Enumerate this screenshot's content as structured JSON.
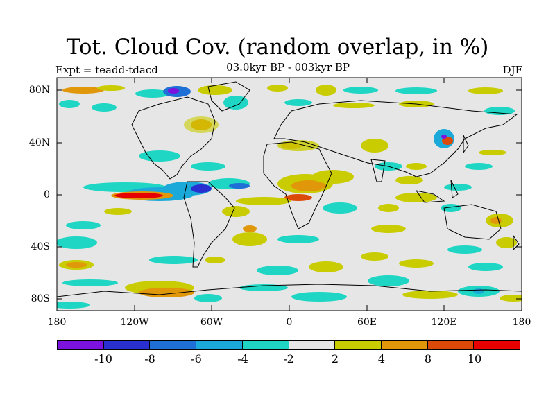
{
  "title": "Tot. Cloud Cov. (random overlap, in %)",
  "experiment_label": "Expt = teadd-tdacd",
  "period_label": "03.0kyr BP - 003kyr BP",
  "season_label": "DJF",
  "y_ticks": [
    "80N",
    "40N",
    "0",
    "40S",
    "80S"
  ],
  "x_ticks": [
    "180",
    "120W",
    "60W",
    "0",
    "60E",
    "120E",
    "180"
  ],
  "colorbar": {
    "colors": [
      "#7b12de",
      "#2a2fd0",
      "#1e6fd6",
      "#1aa9d9",
      "#1ed6c3",
      "#e6e6e6",
      "#c9cc00",
      "#e0980a",
      "#dc4a0a",
      "#e60000"
    ],
    "labels": [
      "-10",
      "-8",
      "-6",
      "-4",
      "-2",
      "2",
      "4",
      "8",
      "10"
    ]
  },
  "map_background": "#e6e6e6"
}
